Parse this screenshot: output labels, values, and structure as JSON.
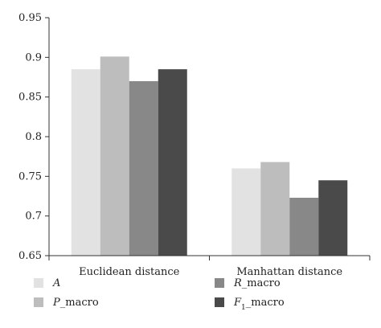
{
  "chart_data": {
    "type": "bar",
    "categories": [
      "Euclidean distance",
      "Manhattan distance"
    ],
    "series": [
      {
        "name": "A",
        "values": [
          0.885,
          0.76
        ],
        "color": "#e2e2e2"
      },
      {
        "name": "P_macro",
        "values": [
          0.901,
          0.768
        ],
        "color": "#bdbdbd"
      },
      {
        "name": "R_macro",
        "values": [
          0.87,
          0.723
        ],
        "color": "#888888"
      },
      {
        "name": "F1_macro",
        "values": [
          0.885,
          0.745
        ],
        "color": "#4a4a4a"
      }
    ],
    "ylim": [
      0.65,
      0.95
    ],
    "yticks": [
      "0.65",
      "0.7",
      "0.75",
      "0.8",
      "0.85",
      "0.9",
      "0.95"
    ],
    "grid": false,
    "legend_position": "bottom",
    "legend_items": [
      {
        "var": "A",
        "sub": "",
        "suffix": ""
      },
      {
        "var": "P",
        "sub": "",
        "suffix": "_macro"
      },
      {
        "var": "R",
        "sub": "",
        "suffix": "_macro"
      },
      {
        "var": "F",
        "sub": "1",
        "suffix": "_macro"
      }
    ]
  }
}
